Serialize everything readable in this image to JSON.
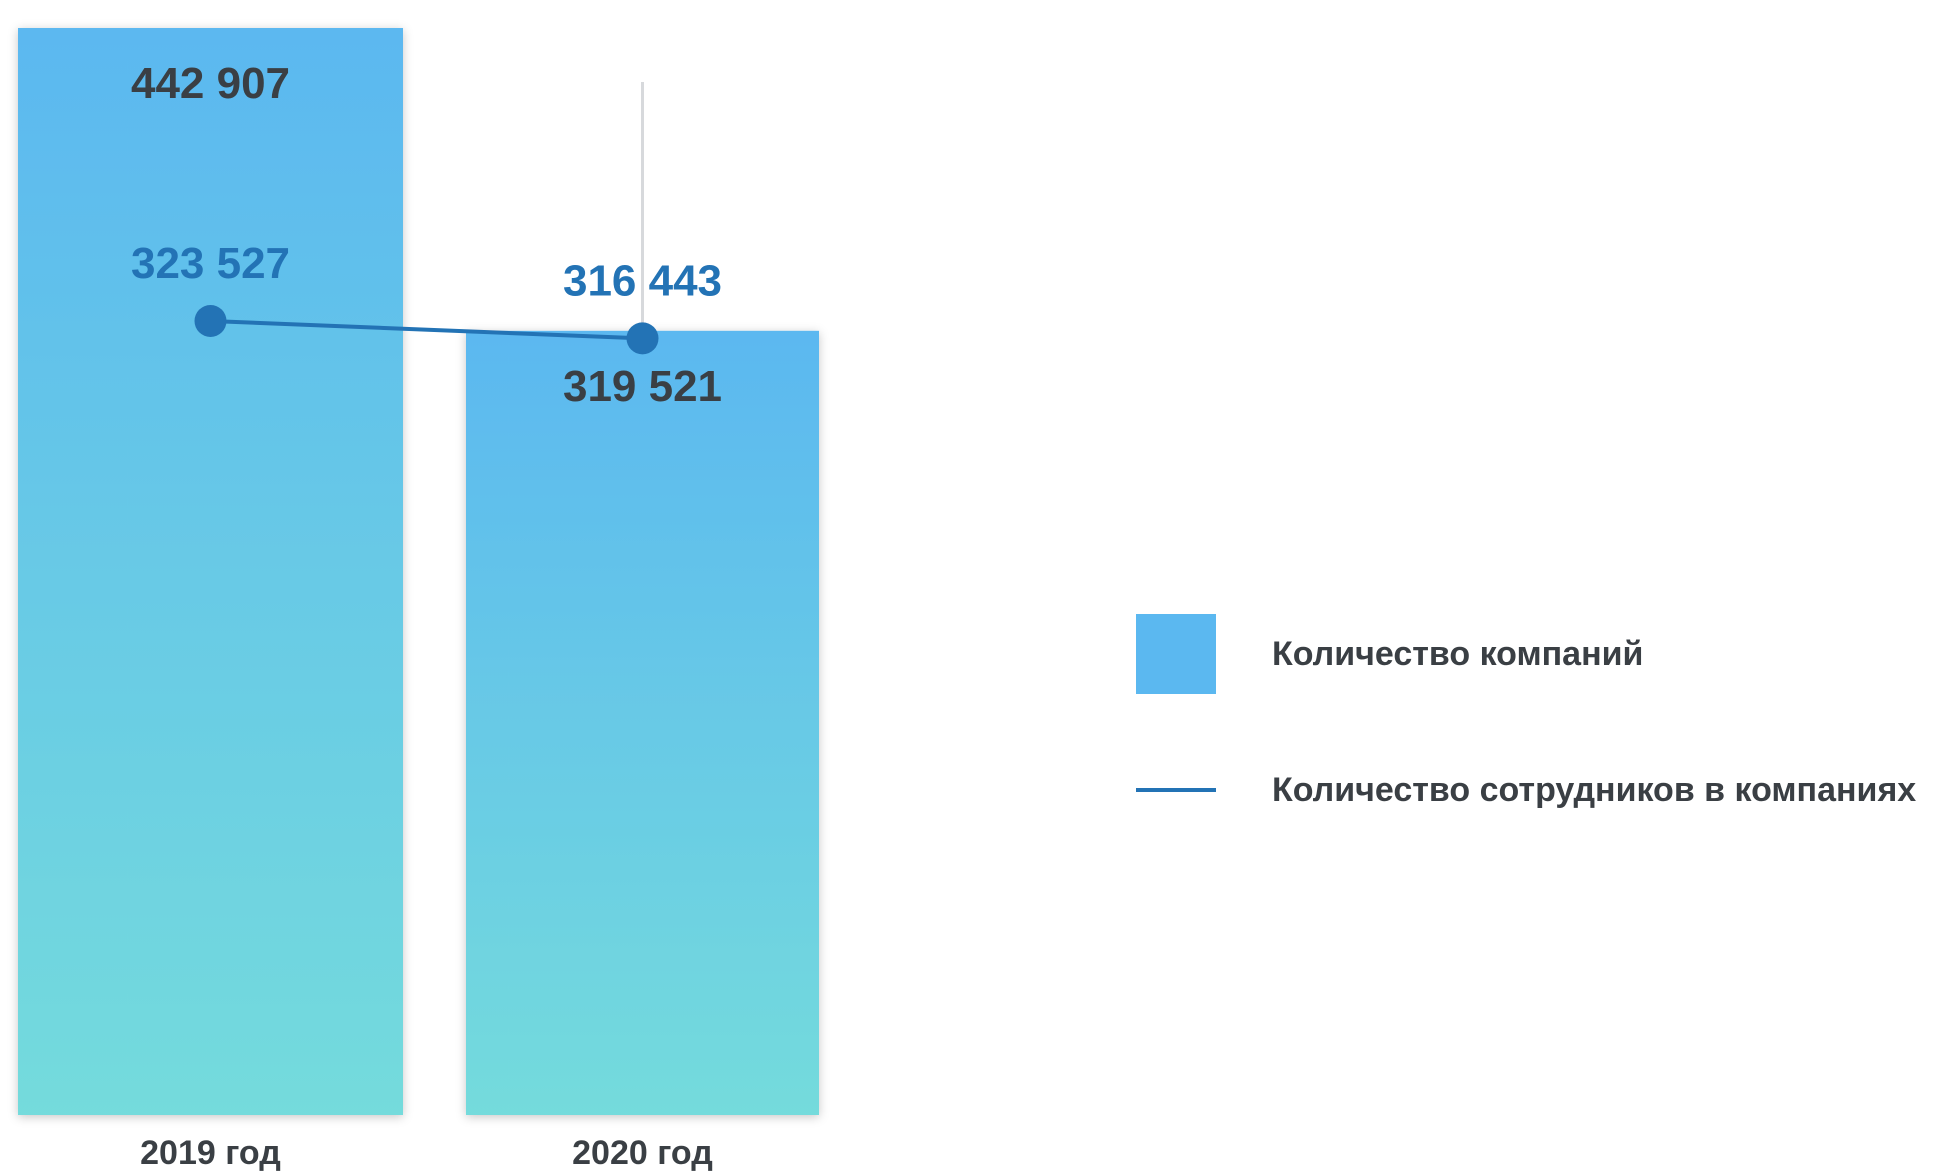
{
  "chart_data": {
    "type": "bar",
    "categories": [
      "2019 год",
      "2020 год"
    ],
    "series": [
      {
        "name": "Количество компаний",
        "kind": "bar",
        "values": [
          442907,
          319521
        ],
        "labels": [
          "442 907",
          "319 521"
        ],
        "color_top": "#5bb8f0",
        "color_bottom": "#74dbdc"
      },
      {
        "name": "Количество сотрудников в компаниях",
        "kind": "line",
        "values": [
          323527,
          316443
        ],
        "labels": [
          "323 527",
          "316 443"
        ],
        "color": "#2373b5"
      }
    ],
    "ylim": [
      0,
      442907
    ],
    "grid": false,
    "legend_position": "right"
  }
}
